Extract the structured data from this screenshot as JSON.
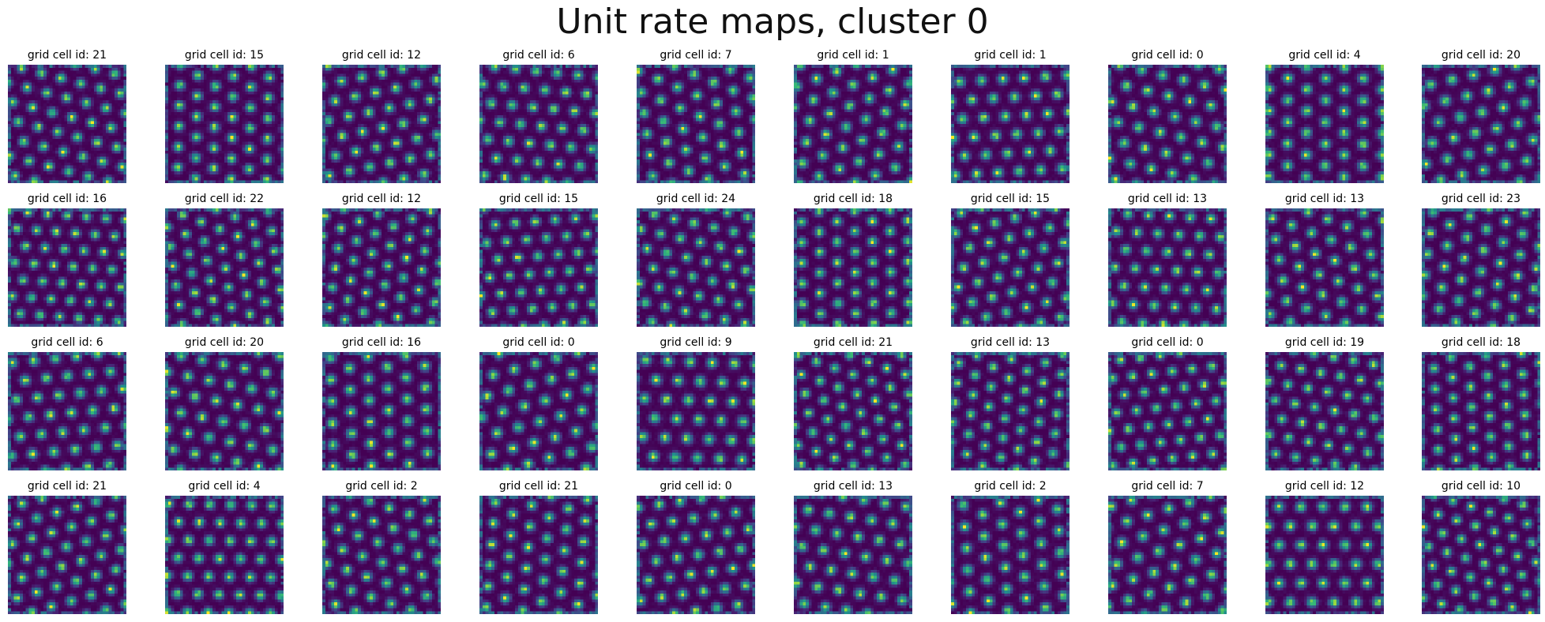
{
  "figure": {
    "title": "Unit rate maps, cluster 0"
  },
  "chart_data": {
    "type": "heatmap",
    "title": "Unit rate maps, cluster 0",
    "layout": {
      "rows": 4,
      "cols": 10
    },
    "colormap": "viridis",
    "colors": {
      "low": "#440154",
      "mid": "#21918c",
      "high": "#fde725"
    },
    "axes_visible": false,
    "panel_title_prefix": "grid cell id: ",
    "grid_cell_ids": [
      [
        21,
        15,
        12,
        6,
        7,
        1,
        1,
        0,
        4,
        20
      ],
      [
        16,
        22,
        12,
        15,
        24,
        18,
        15,
        13,
        13,
        23
      ],
      [
        6,
        20,
        16,
        0,
        9,
        21,
        13,
        0,
        19,
        18
      ],
      [
        21,
        4,
        2,
        21,
        0,
        13,
        2,
        7,
        12,
        10
      ]
    ],
    "panel_titles": [
      [
        "grid cell id: 21",
        "grid cell id: 15",
        "grid cell id: 12",
        "grid cell id: 6",
        "grid cell id: 7",
        "grid cell id: 1",
        "grid cell id: 1",
        "grid cell id: 0",
        "grid cell id: 4",
        "grid cell id: 20"
      ],
      [
        "grid cell id: 16",
        "grid cell id: 22",
        "grid cell id: 12",
        "grid cell id: 15",
        "grid cell id: 24",
        "grid cell id: 18",
        "grid cell id: 15",
        "grid cell id: 13",
        "grid cell id: 13",
        "grid cell id: 23"
      ],
      [
        "grid cell id: 6",
        "grid cell id: 20",
        "grid cell id: 16",
        "grid cell id: 0",
        "grid cell id: 9",
        "grid cell id: 21",
        "grid cell id: 13",
        "grid cell id: 0",
        "grid cell id: 19",
        "grid cell id: 18"
      ],
      [
        "grid cell id: 21",
        "grid cell id: 4",
        "grid cell id: 2",
        "grid cell id: 21",
        "grid cell id: 0",
        "grid cell id: 13",
        "grid cell id: 2",
        "grid cell id: 7",
        "grid cell id: 12",
        "grid cell id: 10"
      ]
    ]
  }
}
